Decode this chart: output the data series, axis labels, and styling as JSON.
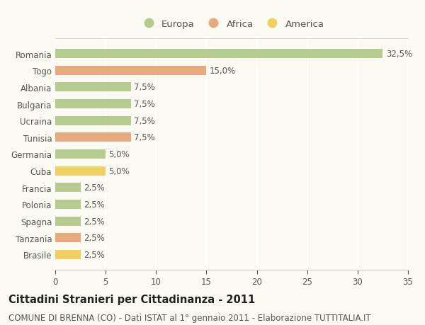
{
  "categories": [
    "Romania",
    "Togo",
    "Albania",
    "Bulgaria",
    "Ucraina",
    "Tunisia",
    "Germania",
    "Cuba",
    "Francia",
    "Polonia",
    "Spagna",
    "Tanzania",
    "Brasile"
  ],
  "values": [
    32.5,
    15.0,
    7.5,
    7.5,
    7.5,
    7.5,
    5.0,
    5.0,
    2.5,
    2.5,
    2.5,
    2.5,
    2.5
  ],
  "continents": [
    "Europa",
    "Africa",
    "Europa",
    "Europa",
    "Europa",
    "Africa",
    "Europa",
    "America",
    "Europa",
    "Europa",
    "Europa",
    "Africa",
    "America"
  ],
  "colors": {
    "Europa": "#b5cc8e",
    "Africa": "#e8a97e",
    "America": "#f0d060"
  },
  "title": "Cittadini Stranieri per Cittadinanza - 2011",
  "subtitle": "COMUNE DI BRENNA (CO) - Dati ISTAT al 1° gennaio 2011 - Elaborazione TUTTITALIA.IT",
  "xlim": [
    0,
    35
  ],
  "xticks": [
    0,
    5,
    10,
    15,
    20,
    25,
    30,
    35
  ],
  "background_color": "#fafaf2",
  "grid_color": "#ffffff",
  "bar_height": 0.55,
  "title_fontsize": 10.5,
  "subtitle_fontsize": 8.5,
  "label_fontsize": 8.5,
  "tick_fontsize": 8.5,
  "legend_fontsize": 9.5
}
